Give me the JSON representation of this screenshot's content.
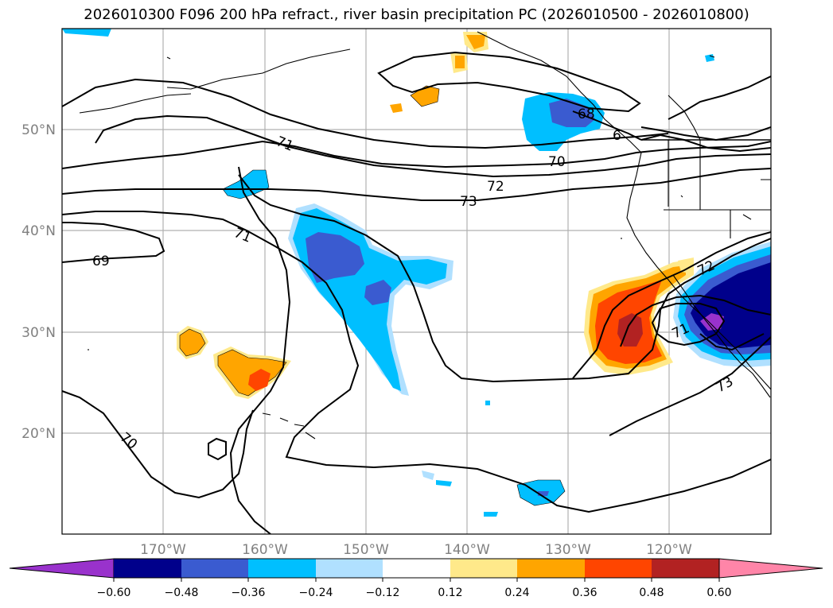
{
  "title": "2026010300 F096 200 hPa refract., river basin precipitation PC (2026010500 - 2026010800)",
  "latitude_labels": [
    "50°N",
    "40°N",
    "30°N",
    "20°N"
  ],
  "longitude_labels": [
    "170°W",
    "160°W",
    "150°W",
    "140°W",
    "130°W",
    "120°W"
  ],
  "contour_labels": [
    "71",
    "71",
    "70",
    "72",
    "73",
    "69",
    "70",
    "68",
    "6",
    "72",
    "71",
    "73"
  ],
  "colorbar": {
    "tick_labels": [
      "−0.60",
      "−0.48",
      "−0.36",
      "−0.24",
      "−0.12",
      "0.12",
      "0.24",
      "0.36",
      "0.48",
      "0.60"
    ],
    "colors": [
      "#9932cc",
      "#00008b",
      "#3a5bd0",
      "#00bfff",
      "#b0e0ff",
      "#ffffff",
      "#ffe98a",
      "#ffa500",
      "#ff4500",
      "#b22222",
      "#ff85a8"
    ]
  }
}
